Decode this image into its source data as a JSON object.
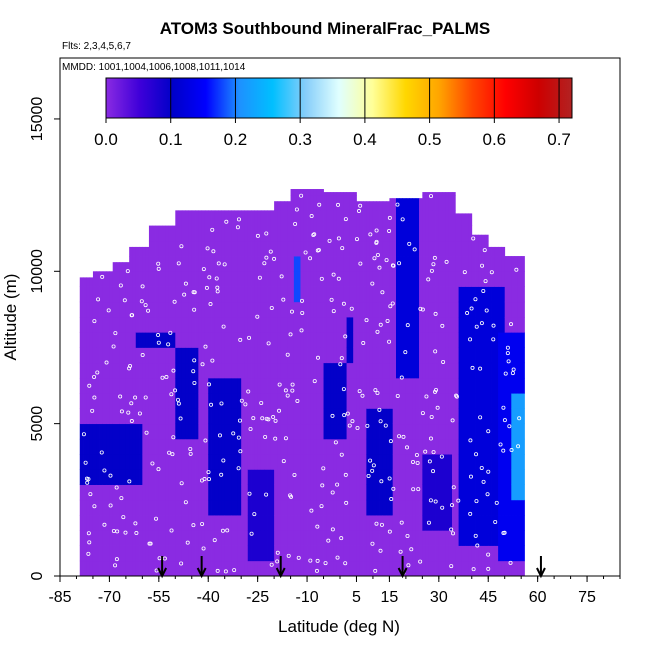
{
  "chart_data": {
    "type": "heatmap",
    "title": "ATOM3 Southbound MineralFrac_PALMS",
    "flights_text": "Flts: 2,3,4,5,6,7",
    "mmdd_text": "MMDD: 1001,1004,1006,1008,1011,1014",
    "xlabel": "Latitude (deg N)",
    "ylabel": "Altitude (m)",
    "xlim": [
      -85,
      85
    ],
    "ylim": [
      0,
      17000
    ],
    "x_ticks": [
      -85,
      -70,
      -55,
      -40,
      -25,
      -10,
      5,
      15,
      30,
      45,
      60,
      75
    ],
    "y_ticks": [
      0,
      5000,
      10000,
      15000
    ],
    "colorbar": {
      "min": 0.0,
      "max": 0.72,
      "ticks": [
        "0.0",
        "0.1",
        "0.2",
        "0.3",
        "0.4",
        "0.5",
        "0.6",
        "0.7"
      ],
      "tick_values": [
        0,
        0.1,
        0.2,
        0.3,
        0.4,
        0.5,
        0.6,
        0.7
      ],
      "colors": [
        "#8a2be2",
        "#3f00d9",
        "#0000c8",
        "#0000ff",
        "#1e90ff",
        "#00bfff",
        "#87cefa",
        "#e0ffff",
        "#ffff99",
        "#ffd700",
        "#ffa500",
        "#ff4500",
        "#ff0000",
        "#cd0000",
        "#b22222"
      ]
    },
    "field_color_low": "#8a2be2",
    "field_color_mid": "#0000cd",
    "field_color_high": "#1e90ff",
    "flight_markers_lat": [
      -54,
      -42,
      -18,
      19,
      61
    ],
    "envelope": [
      {
        "lat": -79,
        "top": 9800
      },
      {
        "lat": -75,
        "top": 10000
      },
      {
        "lat": -69,
        "top": 10300
      },
      {
        "lat": -64,
        "top": 10800
      },
      {
        "lat": -58,
        "top": 11500
      },
      {
        "lat": -50,
        "top": 12000
      },
      {
        "lat": -40,
        "top": 12000
      },
      {
        "lat": -30,
        "top": 12000
      },
      {
        "lat": -20,
        "top": 12300
      },
      {
        "lat": -15,
        "top": 12700
      },
      {
        "lat": -5,
        "top": 12600
      },
      {
        "lat": 5,
        "top": 12300
      },
      {
        "lat": 15,
        "top": 12400
      },
      {
        "lat": 25,
        "top": 12600
      },
      {
        "lat": 35,
        "top": 11900
      },
      {
        "lat": 40,
        "top": 11200
      },
      {
        "lat": 45,
        "top": 10800
      },
      {
        "lat": 50,
        "top": 10500
      },
      {
        "lat": 56,
        "top": 10100
      }
    ],
    "blue_patches": [
      {
        "lat0": -79,
        "lat1": -60,
        "alt0": 3000,
        "alt1": 5000,
        "v": 0.1
      },
      {
        "lat0": -62,
        "lat1": -50,
        "alt0": 7500,
        "alt1": 8000,
        "v": 0.1
      },
      {
        "lat0": -50,
        "lat1": -43,
        "alt0": 4500,
        "alt1": 7500,
        "v": 0.1
      },
      {
        "lat0": -40,
        "lat1": -30,
        "alt0": 1800,
        "alt1": 6500,
        "v": 0.1
      },
      {
        "lat0": -28,
        "lat1": -20,
        "alt0": 500,
        "alt1": 3500,
        "v": 0.08
      },
      {
        "lat0": -14,
        "lat1": -12,
        "alt0": 9000,
        "alt1": 10500,
        "v": 0.18
      },
      {
        "lat0": -5,
        "lat1": 2,
        "alt0": 4500,
        "alt1": 7000,
        "v": 0.1
      },
      {
        "lat0": 2,
        "lat1": 4,
        "alt0": 7000,
        "alt1": 8500,
        "v": 0.1
      },
      {
        "lat0": 8,
        "lat1": 16,
        "alt0": 2000,
        "alt1": 5500,
        "v": 0.1
      },
      {
        "lat0": 17,
        "lat1": 24,
        "alt0": 6500,
        "alt1": 12500,
        "v": 0.12
      },
      {
        "lat0": 25,
        "lat1": 34,
        "alt0": 1500,
        "alt1": 4000,
        "v": 0.08
      },
      {
        "lat0": 36,
        "lat1": 50,
        "alt0": 1000,
        "alt1": 9500,
        "v": 0.12
      },
      {
        "lat0": 48,
        "lat1": 56,
        "alt0": 500,
        "alt1": 8000,
        "v": 0.14
      },
      {
        "lat0": 52,
        "lat1": 56,
        "alt0": 2500,
        "alt1": 6000,
        "v": 0.22
      }
    ]
  }
}
